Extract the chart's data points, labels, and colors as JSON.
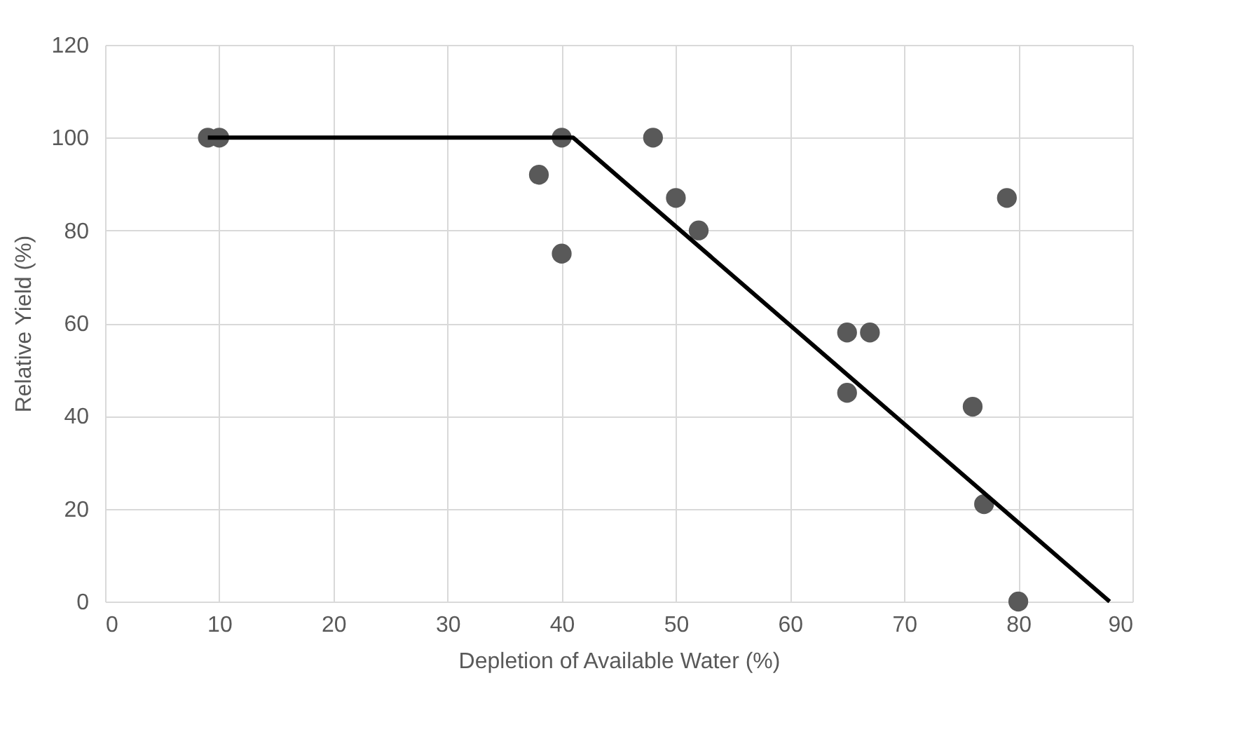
{
  "chart_data": {
    "type": "scatter",
    "xlabel": "Depletion of Available Water (%)",
    "ylabel": "Relative Yield (%)",
    "series": [
      {
        "color": "#595959",
        "marker": "circle",
        "x": [
          9,
          10,
          38,
          40,
          40,
          48,
          50,
          52,
          65,
          67,
          65,
          76,
          77,
          79,
          80
        ],
        "values": [
          100,
          100,
          92,
          100,
          75,
          100,
          87,
          80,
          58,
          58,
          45,
          42,
          21,
          87,
          0
        ]
      },
      {
        "type": "line",
        "color": "#000000",
        "line_style": "solid",
        "x": [
          9,
          41,
          88
        ],
        "values": [
          100,
          100,
          0
        ]
      }
    ],
    "xlim": [
      0,
      90
    ],
    "xticks": [
      0,
      10,
      20,
      30,
      40,
      50,
      60,
      70,
      80,
      90
    ],
    "ylim": [
      0,
      120
    ],
    "yticks": [
      0,
      20,
      40,
      60,
      80,
      100,
      120
    ],
    "grid": true
  }
}
